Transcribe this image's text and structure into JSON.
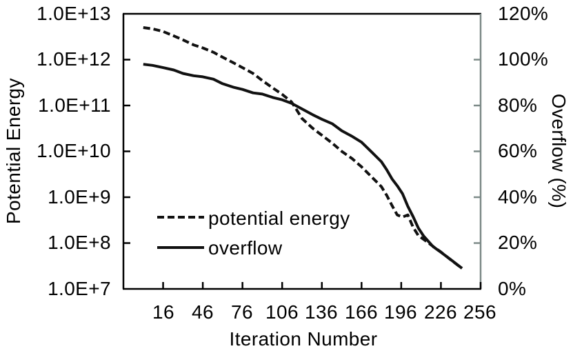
{
  "chart_data": {
    "type": "line",
    "title": "",
    "xlabel": "Iteration Number",
    "ylabel_left": "Potential Energy",
    "ylabel_right": "Overflow (%)",
    "grid": false,
    "x_axis": {
      "min": -14,
      "max": 256,
      "tick_values": [
        16,
        46,
        76,
        106,
        136,
        166,
        196,
        226,
        256
      ],
      "tick_labels": [
        "16",
        "46",
        "76",
        "106",
        "136",
        "166",
        "196",
        "226",
        "256"
      ]
    },
    "left_axis": {
      "scale": "log",
      "min": 10000000.0,
      "max": 10000000000000.0,
      "tick_values": [
        10000000000000.0,
        1000000000000.0,
        100000000000.0,
        10000000000.0,
        1000000000.0,
        100000000.0,
        10000000.0
      ],
      "tick_labels": [
        "1.0E+13",
        "1.0E+12",
        "1.0E+11",
        "1.0E+10",
        "1.0E+9",
        "1.0E+8",
        "1.0E+7"
      ]
    },
    "right_axis": {
      "scale": "linear",
      "min": 0,
      "max": 120,
      "tick_values": [
        120,
        100,
        80,
        60,
        40,
        20,
        0
      ],
      "tick_labels": [
        "120%",
        "100%",
        "80%",
        "60%",
        "40%",
        "20%",
        "0%"
      ]
    },
    "legend": {
      "position": "inside-lower-left",
      "items": [
        {
          "label": "potential energy",
          "style": "dashed"
        },
        {
          "label": "overflow",
          "style": "solid"
        }
      ]
    },
    "series": [
      {
        "name": "potential energy",
        "axis": "left",
        "style": "dashed",
        "points": [
          [
            1,
            5000000000000.0
          ],
          [
            8,
            4700000000000.0
          ],
          [
            16,
            4100000000000.0
          ],
          [
            24,
            3300000000000.0
          ],
          [
            31,
            2700000000000.0
          ],
          [
            39,
            2100000000000.0
          ],
          [
            46,
            1800000000000.0
          ],
          [
            54,
            1450000000000.0
          ],
          [
            61,
            1130000000000.0
          ],
          [
            69,
            860000000000.0
          ],
          [
            76,
            670000000000.0
          ],
          [
            84,
            500000000000.0
          ],
          [
            91,
            350000000000.0
          ],
          [
            99,
            240000000000.0
          ],
          [
            106,
            175000000000.0
          ],
          [
            113,
            120000000000.0
          ],
          [
            117,
            80000000000.0
          ],
          [
            121,
            52000000000.0
          ],
          [
            129,
            32000000000.0
          ],
          [
            136,
            22500000000.0
          ],
          [
            144,
            15000000000.0
          ],
          [
            151,
            10000000000.0
          ],
          [
            159,
            6900000000.0
          ],
          [
            166,
            4600000000.0
          ],
          [
            174,
            2700000000.0
          ],
          [
            181,
            1700000000.0
          ],
          [
            185,
            1100000000.0
          ],
          [
            189,
            660000000.0
          ],
          [
            193,
            410000000.0
          ],
          [
            197,
            370000000.0
          ],
          [
            201,
            410000000.0
          ],
          [
            205,
            220000000.0
          ],
          [
            209,
            145000000.0
          ],
          [
            213,
            120000000.0
          ],
          [
            220,
            85000000.0
          ],
          [
            226,
            64000000.0
          ],
          [
            234,
            42000000.0
          ],
          [
            242,
            28000000.0
          ]
        ]
      },
      {
        "name": "overflow",
        "axis": "right",
        "style": "solid",
        "points": [
          [
            1,
            98
          ],
          [
            8,
            97.5
          ],
          [
            16,
            96.5
          ],
          [
            24,
            95.5
          ],
          [
            31,
            94
          ],
          [
            39,
            93
          ],
          [
            46,
            92.5
          ],
          [
            54,
            91.5
          ],
          [
            61,
            89.5
          ],
          [
            69,
            88
          ],
          [
            76,
            87
          ],
          [
            84,
            85.5
          ],
          [
            91,
            85
          ],
          [
            99,
            83.5
          ],
          [
            106,
            82.5
          ],
          [
            113,
            81
          ],
          [
            121,
            78.5
          ],
          [
            129,
            76
          ],
          [
            136,
            74
          ],
          [
            144,
            72
          ],
          [
            151,
            69
          ],
          [
            159,
            66.5
          ],
          [
            166,
            64
          ],
          [
            174,
            59.5
          ],
          [
            181,
            55.5
          ],
          [
            185,
            52
          ],
          [
            189,
            48
          ],
          [
            193,
            45
          ],
          [
            197,
            41.5
          ],
          [
            201,
            36
          ],
          [
            205,
            31.5
          ],
          [
            209,
            26.5
          ],
          [
            213,
            23
          ],
          [
            220,
            18.5
          ],
          [
            226,
            16
          ],
          [
            234,
            12.5
          ],
          [
            242,
            9
          ]
        ]
      }
    ],
    "colors": {
      "background": "#ffffff",
      "primary_axis": "#000000",
      "secondary_axis": "#7d8a88",
      "line": "#111111",
      "text": "#000000"
    }
  }
}
